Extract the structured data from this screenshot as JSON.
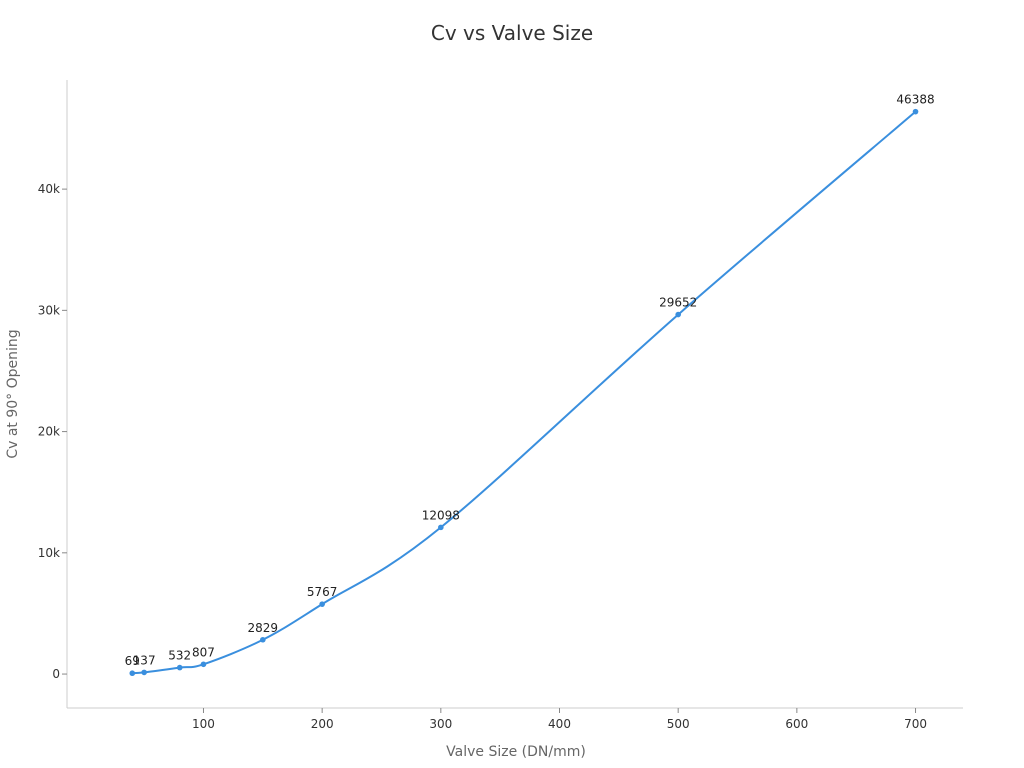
{
  "chart_data": {
    "type": "line",
    "title": "Cv vs Valve Size",
    "xlabel": "Valve Size (DN/mm)",
    "ylabel": "Cv at 90° Opening",
    "x": [
      40,
      50,
      80,
      100,
      150,
      200,
      300,
      500,
      700
    ],
    "series": [
      {
        "values": [
          69,
          137,
          532,
          807,
          2829,
          5767,
          12098,
          29652,
          46388
        ],
        "color": "#3a8fde"
      }
    ],
    "data_labels": [
      "69",
      "137",
      "532",
      "807",
      "2829",
      "5767",
      "12098",
      "29652",
      "46388"
    ],
    "xlim": [
      -15,
      740
    ],
    "ylim": [
      -2800,
      49000
    ],
    "xticks": [
      100,
      200,
      300,
      400,
      500,
      600,
      700
    ],
    "xtick_labels": [
      "100",
      "200",
      "300",
      "400",
      "500",
      "600",
      "700"
    ],
    "yticks": [
      0,
      10000,
      20000,
      30000,
      40000
    ],
    "ytick_labels": [
      "0",
      "10k",
      "20k",
      "30k",
      "40k"
    ],
    "grid": false,
    "legend": "none"
  }
}
